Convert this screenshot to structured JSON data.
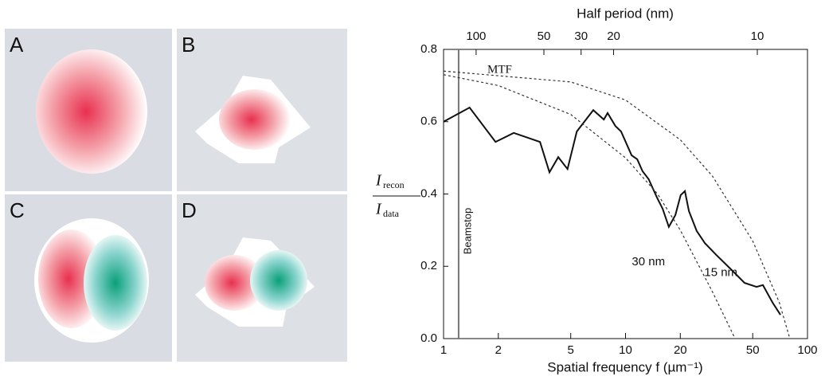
{
  "panels": [
    "A",
    "B",
    "C",
    "D"
  ],
  "chart_data": {
    "type": "line",
    "ylabel_numerator": "I",
    "ylabel_numerator_sub": "recon",
    "ylabel_denominator": "I",
    "ylabel_denominator_sub": "data",
    "xlabel": "Spatial frequency f (µm⁻¹)",
    "x2label": "Half period (nm)",
    "xscale": "log",
    "xlim": [
      1,
      100
    ],
    "xticks": [
      1,
      2,
      5,
      10,
      20,
      50,
      100
    ],
    "ylim": [
      0,
      0.8
    ],
    "yticks": [
      {
        "value": 0,
        "label": "0.0"
      },
      0.2,
      0.4,
      0.6,
      0.8
    ],
    "x2ticks": [
      {
        "value": 1.51,
        "label": "100"
      },
      {
        "value": 3.56,
        "label": "50"
      },
      {
        "value": 5.7,
        "label": "30"
      },
      {
        "value": 8.6,
        "label": "20"
      },
      {
        "value": 53,
        "label": "10"
      }
    ],
    "annotation": "MTF",
    "beamstop": {
      "label": "Beamstop",
      "x": 1.21,
      "color": "#777777"
    },
    "series": [
      {
        "color": "#111111",
        "dash": false,
        "x": [
          1,
          1.39,
          1.93,
          2.43,
          3.39,
          3.82,
          4.27,
          4.8,
          5.4,
          6.65,
          7.6,
          7.97,
          8.8,
          9.45,
          10.8,
          11.6,
          12.4,
          13.4,
          14.9,
          16.0,
          17.3,
          18.8,
          20.1,
          21.2,
          22.3,
          24.6,
          27.3,
          31.6,
          38.8,
          45.1,
          52.5,
          56.9,
          64.4,
          71.0
        ],
        "values": [
          0.6,
          0.639,
          0.544,
          0.569,
          0.544,
          0.46,
          0.502,
          0.469,
          0.573,
          0.632,
          0.606,
          0.624,
          0.588,
          0.573,
          0.507,
          0.496,
          0.463,
          0.441,
          0.39,
          0.359,
          0.309,
          0.342,
          0.397,
          0.408,
          0.353,
          0.298,
          0.264,
          0.231,
          0.187,
          0.154,
          0.143,
          0.148,
          0.099,
          0.066
        ]
      },
      {
        "name": "30 nm",
        "color": "#333333",
        "dash": true,
        "x": [
          1,
          2,
          5,
          10,
          15,
          20,
          30,
          40
        ],
        "values": [
          0.73,
          0.7,
          0.62,
          0.5,
          0.4,
          0.3,
          0.13,
          0
        ]
      },
      {
        "name": "15 nm",
        "color": "#333333",
        "dash": true,
        "x": [
          1,
          5,
          10,
          20,
          30,
          50,
          70,
          80
        ],
        "values": [
          0.74,
          0.71,
          0.66,
          0.55,
          0.45,
          0.27,
          0.1,
          0
        ]
      }
    ]
  }
}
